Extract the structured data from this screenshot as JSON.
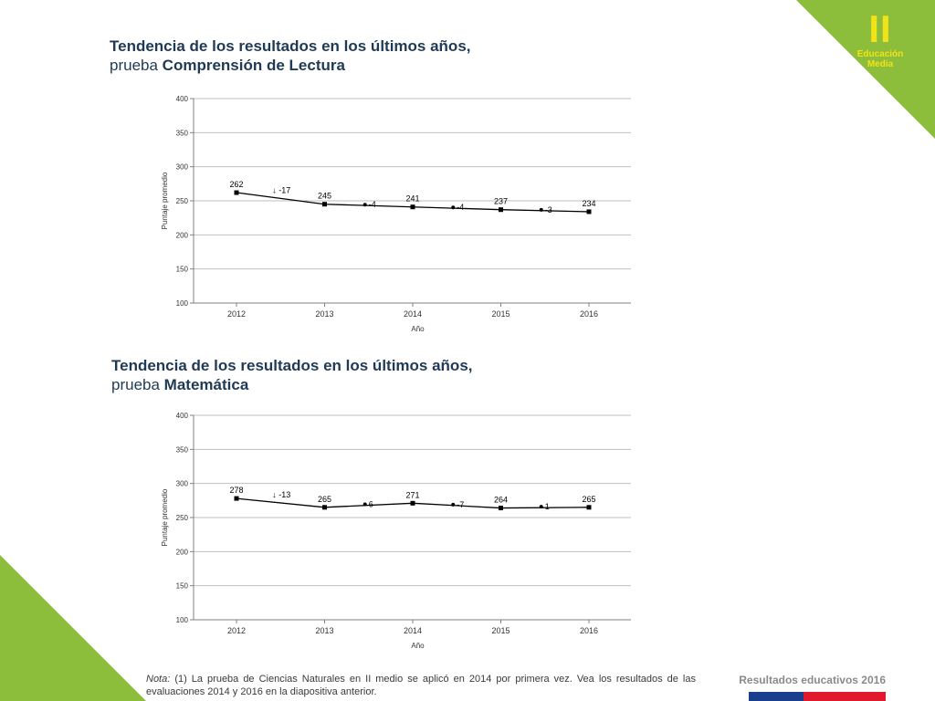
{
  "badge": {
    "level": "II",
    "line1": "Educación",
    "line2": "Media"
  },
  "section1": {
    "title_line1": "Tendencia de los resultados en los últimos años,",
    "title_prefix": "prueba ",
    "title_subject": "Comprensión de Lectura"
  },
  "section2": {
    "title_line1": "Tendencia de los resultados en los últimos años,",
    "title_prefix": "prueba ",
    "title_subject": "Matemática"
  },
  "footnote": {
    "label": "Nota:",
    "text": " (1) La prueba de Ciencias Naturales en II medio se aplicó en 2014 por primera vez. Vea los resultados de las evaluaciones 2014 y 2016 en la diapositiva anterior."
  },
  "footer": {
    "brand": "Resultados educativos 2016"
  },
  "colors": {
    "green": "#8cbd3b",
    "yellow": "#f2e316",
    "title": "#1f3a55",
    "line": "#000000",
    "grid": "#bfbfbf"
  },
  "chart_data": [
    {
      "type": "line",
      "categories": [
        "2012",
        "2013",
        "2014",
        "2015",
        "2016"
      ],
      "series": [
        {
          "values": [
            262,
            245,
            241,
            237,
            234
          ]
        }
      ],
      "changes": [
        {
          "text": "-17",
          "marker": "arrow-down"
        },
        {
          "text": "-4",
          "marker": "dot"
        },
        {
          "text": "-4",
          "marker": "dot"
        },
        {
          "text": "-3",
          "marker": "dot"
        }
      ],
      "xlabel": "Año",
      "ylabel": "Puntaje promedio",
      "ylim": [
        100,
        400
      ],
      "yticks": [
        100,
        150,
        200,
        250,
        300,
        350,
        400
      ],
      "grid": true
    },
    {
      "type": "line",
      "categories": [
        "2012",
        "2013",
        "2014",
        "2015",
        "2016"
      ],
      "series": [
        {
          "values": [
            278,
            265,
            271,
            264,
            265
          ]
        }
      ],
      "changes": [
        {
          "text": "-13",
          "marker": "arrow-down"
        },
        {
          "text": "6",
          "marker": "dot"
        },
        {
          "text": "-7",
          "marker": "dot"
        },
        {
          "text": "1",
          "marker": "dot"
        }
      ],
      "xlabel": "Año",
      "ylabel": "Puntaje promedio",
      "ylim": [
        100,
        400
      ],
      "yticks": [
        100,
        150,
        200,
        250,
        300,
        350,
        400
      ],
      "grid": true
    }
  ]
}
